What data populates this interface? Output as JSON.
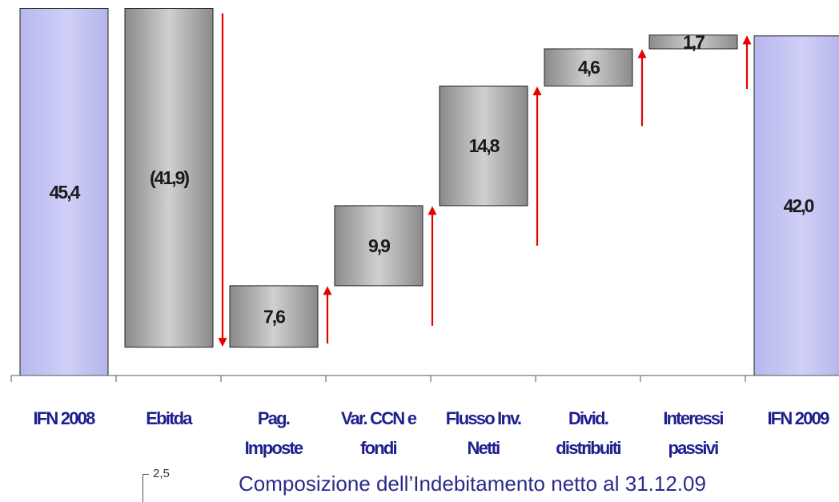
{
  "chart_data": {
    "type": "bar",
    "subtype": "waterfall",
    "categories": [
      [
        "IFN 2008"
      ],
      [
        "Ebitda"
      ],
      [
        "Pag.",
        "Imposte"
      ],
      [
        "Var. CCN e",
        "fondi"
      ],
      [
        "Flusso Inv.",
        "Netti"
      ],
      [
        "Divid.",
        "distribuiti"
      ],
      [
        "Interessi",
        "passivi"
      ],
      [
        "IFN 2009"
      ]
    ],
    "values": [
      45.4,
      -41.9,
      7.6,
      9.9,
      14.8,
      4.6,
      1.7,
      42.0
    ],
    "value_labels": [
      "45,4",
      "(41,9)",
      "7,6",
      "9,9",
      "14,8",
      "4,6",
      "1,7",
      "42,0"
    ],
    "bar_kinds": [
      "total",
      "delta",
      "delta",
      "delta",
      "delta",
      "delta",
      "delta",
      "total"
    ],
    "arrows": [
      "none",
      "down",
      "up",
      "up",
      "up",
      "up",
      "up",
      "none"
    ],
    "ylim": [
      0,
      46
    ],
    "grid": false,
    "legend": "none",
    "colors": {
      "total_bar": "#c4c4f2",
      "delta_bar_dark": "#8a8a8a",
      "delta_bar_light": "#d0d0d0",
      "arrow": "#e60000",
      "category_text": "#1f1f8f",
      "value_text": "#1a1a1a"
    }
  },
  "title": "Composizione dell’Indebitamento netto al 31.12.09",
  "corner_note": "2,5"
}
